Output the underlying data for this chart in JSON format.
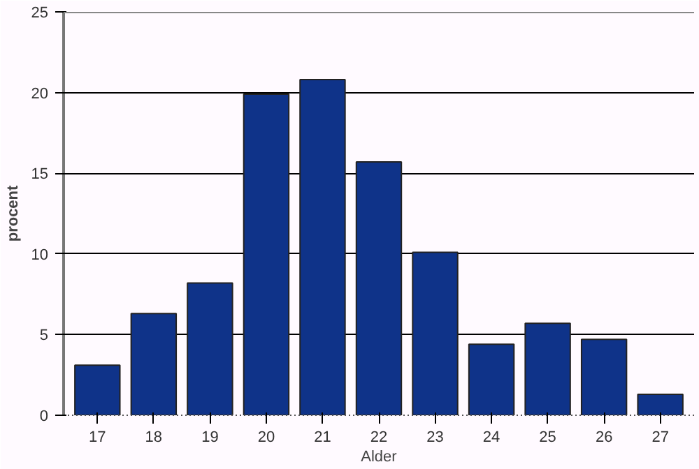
{
  "chart_data": {
    "type": "bar",
    "xlabel": "Alder",
    "ylabel": "procent",
    "categories": [
      "17",
      "18",
      "19",
      "20",
      "21",
      "22",
      "23",
      "24",
      "25",
      "26",
      "27"
    ],
    "values": [
      3.1,
      6.3,
      8.2,
      19.9,
      20.8,
      15.7,
      10.1,
      4.4,
      5.7,
      4.7,
      1.3
    ],
    "color": "#0f3389",
    "ylim": [
      0,
      25
    ],
    "yticks": [
      0,
      5,
      10,
      15,
      20,
      25
    ],
    "grid": "y"
  }
}
